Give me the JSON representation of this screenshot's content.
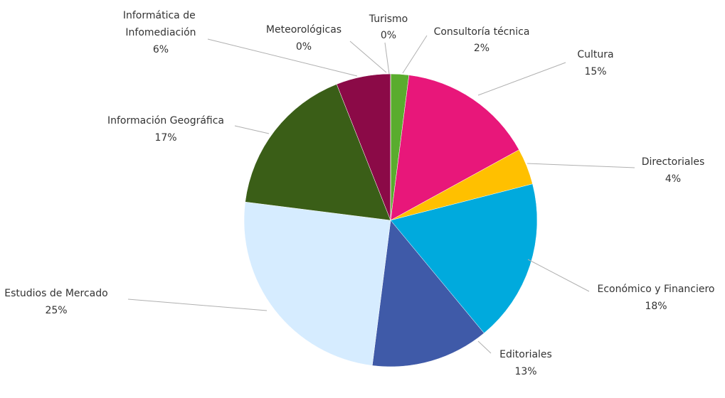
{
  "chart_data": {
    "type": "pie",
    "categories": [
      "Turismo",
      "Consultoría técnica",
      "Cultura",
      "Directoriales",
      "Económico y Financiero",
      "Editoriales",
      "Estudios de Mercado",
      "Información Geográfica",
      "Informática de Infomediación",
      "Meteorológicas"
    ],
    "values": [
      0,
      2,
      15,
      4,
      18,
      13,
      25,
      17,
      6,
      0
    ],
    "value_labels": [
      "0%",
      "2%",
      "15%",
      "4%",
      "18%",
      "13%",
      "25%",
      "17%",
      "6%",
      "0%"
    ],
    "colors": [
      "#1f5fa0",
      "#5aac2e",
      "#e8177a",
      "#ffc000",
      "#00aadd",
      "#3f5aa8",
      "#d6ecff",
      "#3a5e17",
      "#8b0a47",
      "#ff9900"
    ]
  }
}
